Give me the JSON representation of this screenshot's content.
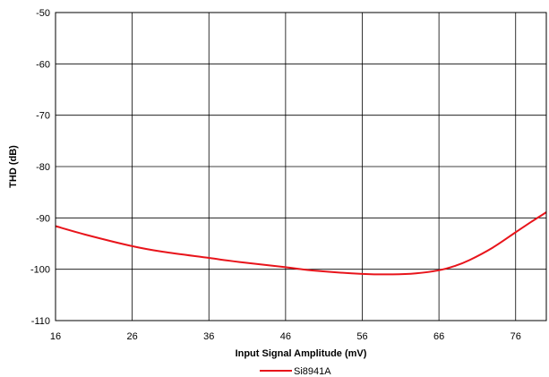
{
  "chart_data": {
    "type": "line",
    "title": "",
    "xlabel": "Input Signal Amplitude (mV)",
    "ylabel": "THD (dB)",
    "xlim": [
      16,
      80
    ],
    "ylim": [
      -110,
      -50
    ],
    "x_ticks": [
      "16",
      "26",
      "36",
      "46",
      "56",
      "66",
      "76"
    ],
    "y_ticks": [
      "-50",
      "-60",
      "-70",
      "-80",
      "-90",
      "-100",
      "-110"
    ],
    "x_tick_values": [
      16,
      26,
      36,
      46,
      56,
      66,
      76
    ],
    "y_tick_values": [
      -50,
      -60,
      -70,
      -80,
      -90,
      -100,
      -110
    ],
    "grid": true,
    "legend_position": "bottom-center",
    "series": [
      {
        "name": "Si8941A",
        "color": "#e8141b",
        "x": [
          16,
          20,
          26,
          30,
          36,
          40,
          46,
          50,
          56,
          60,
          63,
          66,
          68,
          70,
          73,
          76,
          78,
          80
        ],
        "y": [
          -91.6,
          -93.3,
          -95.5,
          -96.6,
          -97.8,
          -98.6,
          -99.6,
          -100.3,
          -100.9,
          -101.0,
          -100.8,
          -100.2,
          -99.4,
          -98.2,
          -95.8,
          -92.8,
          -90.8,
          -88.9
        ]
      }
    ]
  }
}
